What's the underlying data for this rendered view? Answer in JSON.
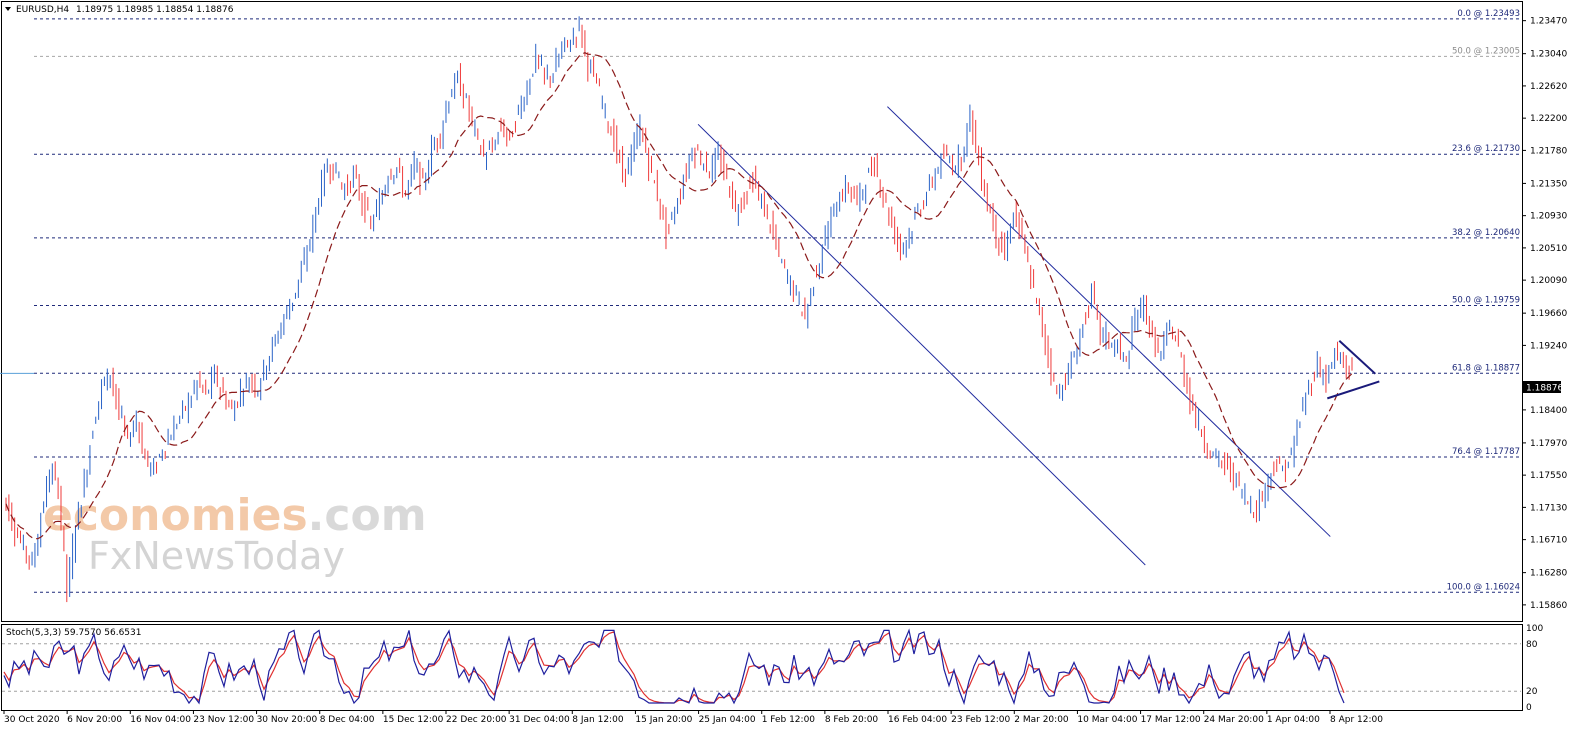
{
  "header": {
    "symbol": "EURUSD,H4",
    "ohlc": "1.18975 1.18985 1.18854 1.18876"
  },
  "indicator": {
    "label": "Stoch(5,3,3) 59.7570 56.6531",
    "levels": [
      "100",
      "80",
      "20",
      "0"
    ]
  },
  "watermark": {
    "line1a": "economies",
    "line1b": ".com",
    "line2": "FxNewsToday"
  },
  "colors": {
    "bull": "#2a63c7",
    "bear": "#ef3b3b",
    "ma": "#8b1a1a",
    "fib": "#1f2a7a",
    "channel": "#1f2a9e",
    "stoch_main": "#1f1f9e",
    "stoch_signal": "#e03131"
  },
  "chart_data": {
    "type": "candlestick",
    "symbol": "EURUSD",
    "timeframe": "H4",
    "last_price": "1.18876",
    "ylim": [
      1.1565,
      1.237
    ],
    "y_ticks": [
      "1.23470",
      "1.23040",
      "1.22620",
      "1.22200",
      "1.21780",
      "1.21350",
      "1.20930",
      "1.20510",
      "1.20090",
      "1.19660",
      "1.19240",
      "1.18400",
      "1.17970",
      "1.17550",
      "1.17130",
      "1.16710",
      "1.16280",
      "1.15860"
    ],
    "x_ticks": [
      "30 Oct 2020",
      "6 Nov 20:00",
      "16 Nov 04:00",
      "23 Nov 12:00",
      "30 Nov 20:00",
      "8 Dec 04:00",
      "15 Dec 12:00",
      "22 Dec 20:00",
      "31 Dec 04:00",
      "8 Jan 12:00",
      "15 Jan 20:00",
      "25 Jan 04:00",
      "1 Feb 12:00",
      "8 Feb 20:00",
      "16 Feb 04:00",
      "23 Feb 12:00",
      "2 Mar 20:00",
      "10 Mar 04:00",
      "17 Mar 12:00",
      "24 Mar 20:00",
      "1 Apr 04:00",
      "8 Apr 12:00"
    ],
    "fibonacci": [
      {
        "label": "0.0 @ 1.23493",
        "value": 1.23493
      },
      {
        "label": "50.0 @ 1.23005",
        "value": 1.23005,
        "grey": true
      },
      {
        "label": "23.6 @ 1.21730",
        "value": 1.2173
      },
      {
        "label": "38.2 @ 1.20640",
        "value": 1.2064
      },
      {
        "label": "50.0 @ 1.19759",
        "value": 1.19759
      },
      {
        "label": "61.8 @ 1.18877",
        "value": 1.18877
      },
      {
        "label": "76.4 @ 1.17787",
        "value": 1.17787
      },
      {
        "label": "100.0 @ 1.16024",
        "value": 1.16024
      }
    ],
    "price_path": [
      [
        0,
        1.172
      ],
      [
        1,
        1.1685
      ],
      [
        2,
        1.166
      ],
      [
        3,
        1.164
      ],
      [
        4,
        1.17
      ],
      [
        5,
        1.176
      ],
      [
        6,
        1.174
      ],
      [
        7,
        1.1603
      ],
      [
        8,
        1.169
      ],
      [
        9,
        1.1745
      ],
      [
        10,
        1.182
      ],
      [
        11,
        1.187
      ],
      [
        12,
        1.189
      ],
      [
        13,
        1.1835
      ],
      [
        14,
        1.18
      ],
      [
        15,
        1.183
      ],
      [
        16,
        1.1775
      ],
      [
        17,
        1.176
      ],
      [
        18,
        1.179
      ],
      [
        19,
        1.181
      ],
      [
        20,
        1.183
      ],
      [
        21,
        1.185
      ],
      [
        22,
        1.1875
      ],
      [
        23,
        1.186
      ],
      [
        24,
        1.1885
      ],
      [
        25,
        1.186
      ],
      [
        26,
        1.1838
      ],
      [
        27,
        1.1865
      ],
      [
        28,
        1.188
      ],
      [
        29,
        1.187
      ],
      [
        30,
        1.1905
      ],
      [
        31,
        1.193
      ],
      [
        32,
        1.196
      ],
      [
        33,
        1.1985
      ],
      [
        34,
        1.202
      ],
      [
        35,
        1.206
      ],
      [
        36,
        1.212
      ],
      [
        37,
        1.216
      ],
      [
        38,
        1.215
      ],
      [
        39,
        1.2125
      ],
      [
        40,
        1.2145
      ],
      [
        41,
        1.211
      ],
      [
        42,
        1.208
      ],
      [
        43,
        1.211
      ],
      [
        44,
        1.215
      ],
      [
        45,
        1.2155
      ],
      [
        46,
        1.212
      ],
      [
        47,
        1.216
      ],
      [
        48,
        1.213
      ],
      [
        49,
        1.218
      ],
      [
        50,
        1.22
      ],
      [
        51,
        1.225
      ],
      [
        52,
        1.227
      ],
      [
        53,
        1.224
      ],
      [
        54,
        1.22
      ],
      [
        55,
        1.217
      ],
      [
        56,
        1.218
      ],
      [
        57,
        1.221
      ],
      [
        58,
        1.219
      ],
      [
        59,
        1.223
      ],
      [
        60,
        1.226
      ],
      [
        61,
        1.23
      ],
      [
        62,
        1.227
      ],
      [
        63,
        1.228
      ],
      [
        64,
        1.231
      ],
      [
        65,
        1.232
      ],
      [
        66,
        1.234
      ],
      [
        67,
        1.229
      ],
      [
        68,
        1.2265
      ],
      [
        69,
        1.2225
      ],
      [
        70,
        1.219
      ],
      [
        71,
        1.2145
      ],
      [
        72,
        1.217
      ],
      [
        73,
        1.221
      ],
      [
        74,
        1.216
      ],
      [
        75,
        1.212
      ],
      [
        76,
        1.207
      ],
      [
        77,
        1.21
      ],
      [
        78,
        1.214
      ],
      [
        79,
        1.218
      ],
      [
        80,
        1.217
      ],
      [
        81,
        1.215
      ],
      [
        82,
        1.217
      ],
      [
        83,
        1.214
      ],
      [
        84,
        1.21
      ],
      [
        85,
        1.212
      ],
      [
        86,
        1.214
      ],
      [
        87,
        1.211
      ],
      [
        88,
        1.208
      ],
      [
        89,
        1.204
      ],
      [
        90,
        1.201
      ],
      [
        91,
        1.199
      ],
      [
        92,
        1.196
      ],
      [
        93,
        1.201
      ],
      [
        94,
        1.205
      ],
      [
        95,
        1.209
      ],
      [
        96,
        1.212
      ],
      [
        97,
        1.213
      ],
      [
        98,
        1.211
      ],
      [
        99,
        1.214
      ],
      [
        100,
        1.216
      ],
      [
        101,
        1.212
      ],
      [
        102,
        1.208
      ],
      [
        103,
        1.205
      ],
      [
        104,
        1.207
      ],
      [
        105,
        1.21
      ],
      [
        106,
        1.212
      ],
      [
        107,
        1.215
      ],
      [
        108,
        1.217
      ],
      [
        109,
        1.216
      ],
      [
        110,
        1.217
      ],
      [
        111,
        1.2225
      ],
      [
        112,
        1.216
      ],
      [
        113,
        1.211
      ],
      [
        114,
        1.207
      ],
      [
        115,
        1.204
      ],
      [
        116,
        1.21
      ],
      [
        117,
        1.206
      ],
      [
        118,
        1.201
      ],
      [
        119,
        1.196
      ],
      [
        120,
        1.191
      ],
      [
        121,
        1.186
      ],
      [
        122,
        1.188
      ],
      [
        123,
        1.191
      ],
      [
        124,
        1.195
      ],
      [
        125,
        1.199
      ],
      [
        126,
        1.194
      ],
      [
        127,
        1.193
      ],
      [
        128,
        1.192
      ],
      [
        129,
        1.19
      ],
      [
        130,
        1.196
      ],
      [
        131,
        1.198
      ],
      [
        132,
        1.193
      ],
      [
        133,
        1.191
      ],
      [
        134,
        1.195
      ],
      [
        135,
        1.192
      ],
      [
        136,
        1.187
      ],
      [
        137,
        1.183
      ],
      [
        138,
        1.18
      ],
      [
        139,
        1.178
      ],
      [
        140,
        1.177
      ],
      [
        141,
        1.176
      ],
      [
        142,
        1.174
      ],
      [
        143,
        1.172
      ],
      [
        144,
        1.171
      ],
      [
        145,
        1.174
      ],
      [
        146,
        1.177
      ],
      [
        147,
        1.176
      ],
      [
        148,
        1.178
      ],
      [
        149,
        1.183
      ],
      [
        150,
        1.187
      ],
      [
        151,
        1.19
      ],
      [
        152,
        1.188
      ],
      [
        153,
        1.191
      ],
      [
        154,
        1.19
      ],
      [
        155,
        1.1885
      ]
    ],
    "moving_average": "dashed dark-red",
    "annotations": [
      "descending channel",
      "symmetrical triangle",
      "fibonacci retracement"
    ],
    "stochastic": {
      "name": "Stoch(5,3,3)",
      "main": 59.757,
      "signal": 56.6531,
      "levels": [
        100,
        80,
        20,
        0
      ]
    }
  }
}
